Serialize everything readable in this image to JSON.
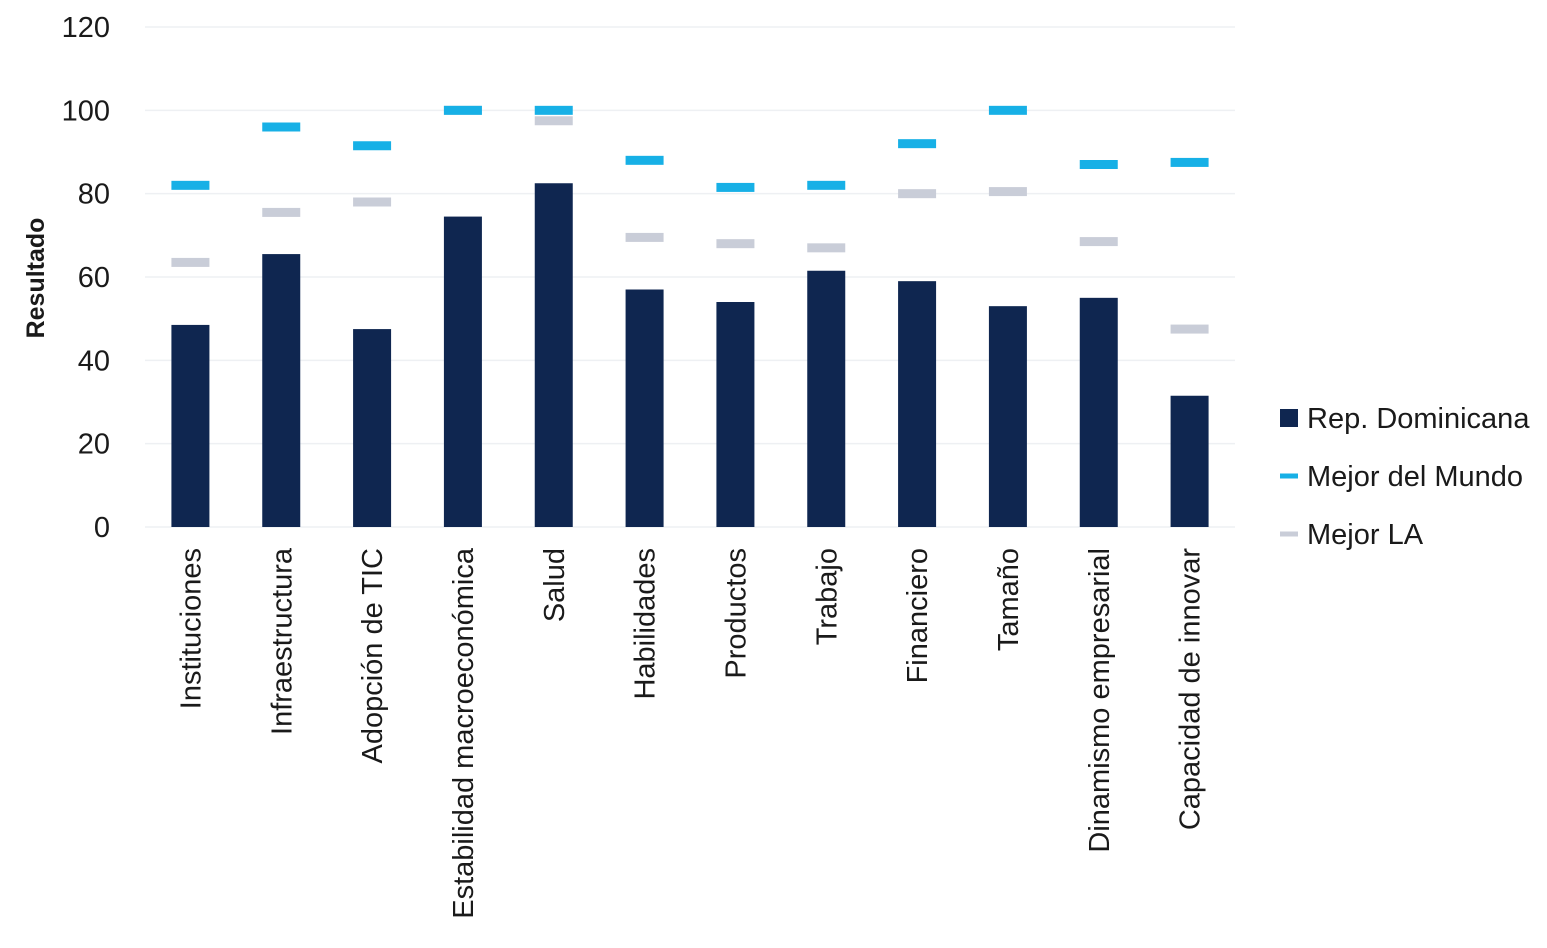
{
  "chart_data": {
    "type": "bar",
    "ylabel": "Resultado",
    "xlabel": "",
    "ylim": [
      0,
      120
    ],
    "yticks": [
      0,
      20,
      40,
      60,
      80,
      100,
      120
    ],
    "grid": true,
    "legend_position": "right",
    "categories": [
      "Instituciones",
      "Infraestructura",
      "Adopción de TIC",
      "Estabilidad macroeconómica",
      "Salud",
      "Habilidades",
      "Productos",
      "Trabajo",
      "Financiero",
      "Tamaño",
      "Dinamismo empresarial",
      "Capacidad de innovar"
    ],
    "series": [
      {
        "name": "Rep. Dominicana",
        "type": "bar",
        "color": "#0f2650",
        "values": [
          48.5,
          65.5,
          47.5,
          74.5,
          82.5,
          57,
          54,
          61.5,
          59,
          53,
          55,
          31.5
        ]
      },
      {
        "name": "Mejor del Mundo",
        "type": "marker",
        "color": "#17b0e6",
        "values": [
          82,
          96,
          91.5,
          100,
          100,
          88,
          81.5,
          82,
          92,
          100,
          87,
          87.5
        ]
      },
      {
        "name": "Mejor LA",
        "type": "marker",
        "color": "#c9cdd8",
        "values": [
          63.5,
          75.5,
          78,
          100,
          97.5,
          69.5,
          68,
          67,
          80,
          80.5,
          68.5,
          47.5
        ]
      }
    ]
  }
}
